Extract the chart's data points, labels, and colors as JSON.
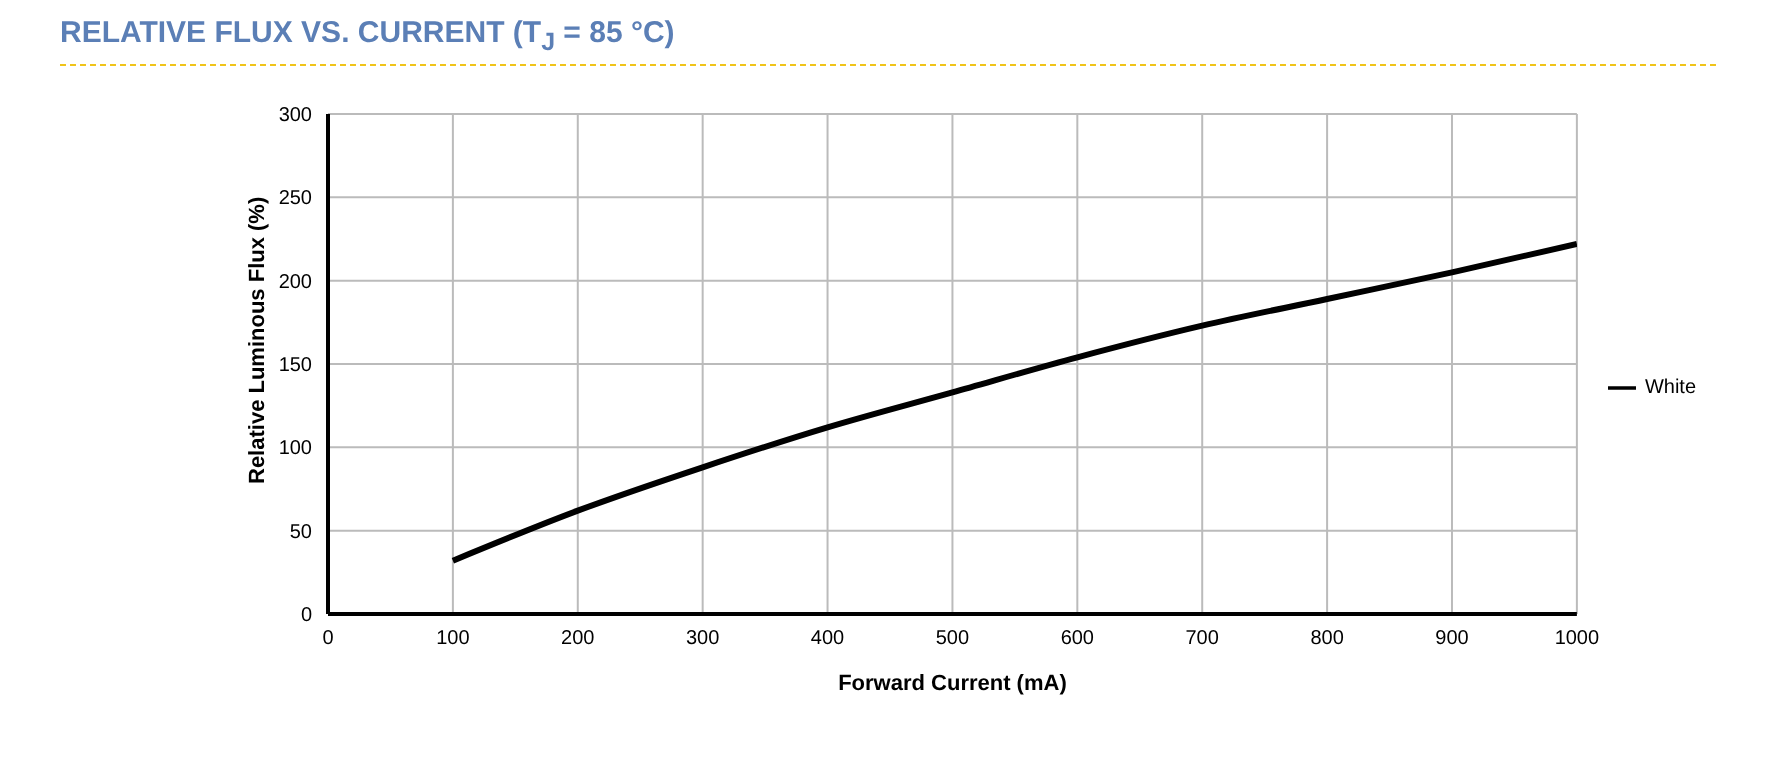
{
  "chart_data": {
    "type": "line",
    "title": "RELATIVE FLUX VS. CURRENT (T$_{J}$ = 85 °C)",
    "xlabel": "Forward Current (mA)",
    "ylabel": "Relative Luminous Flux (%)",
    "x": [
      100,
      200,
      300,
      400,
      500,
      600,
      700,
      800,
      900,
      1000
    ],
    "series": [
      {
        "name": "White",
        "color": "#000000",
        "values": [
          32,
          62,
          88,
          112,
          133,
          154,
          173,
          189,
          205,
          222
        ]
      }
    ],
    "xlim": [
      0,
      1000
    ],
    "xticks": [
      0,
      100,
      200,
      300,
      400,
      500,
      600,
      700,
      800,
      900,
      1000
    ],
    "ylim": [
      0,
      300
    ],
    "yticks": [
      0,
      50,
      100,
      150,
      200,
      250,
      300
    ],
    "grid": true,
    "legend": "right",
    "marker": "none",
    "line_style": "solid"
  }
}
